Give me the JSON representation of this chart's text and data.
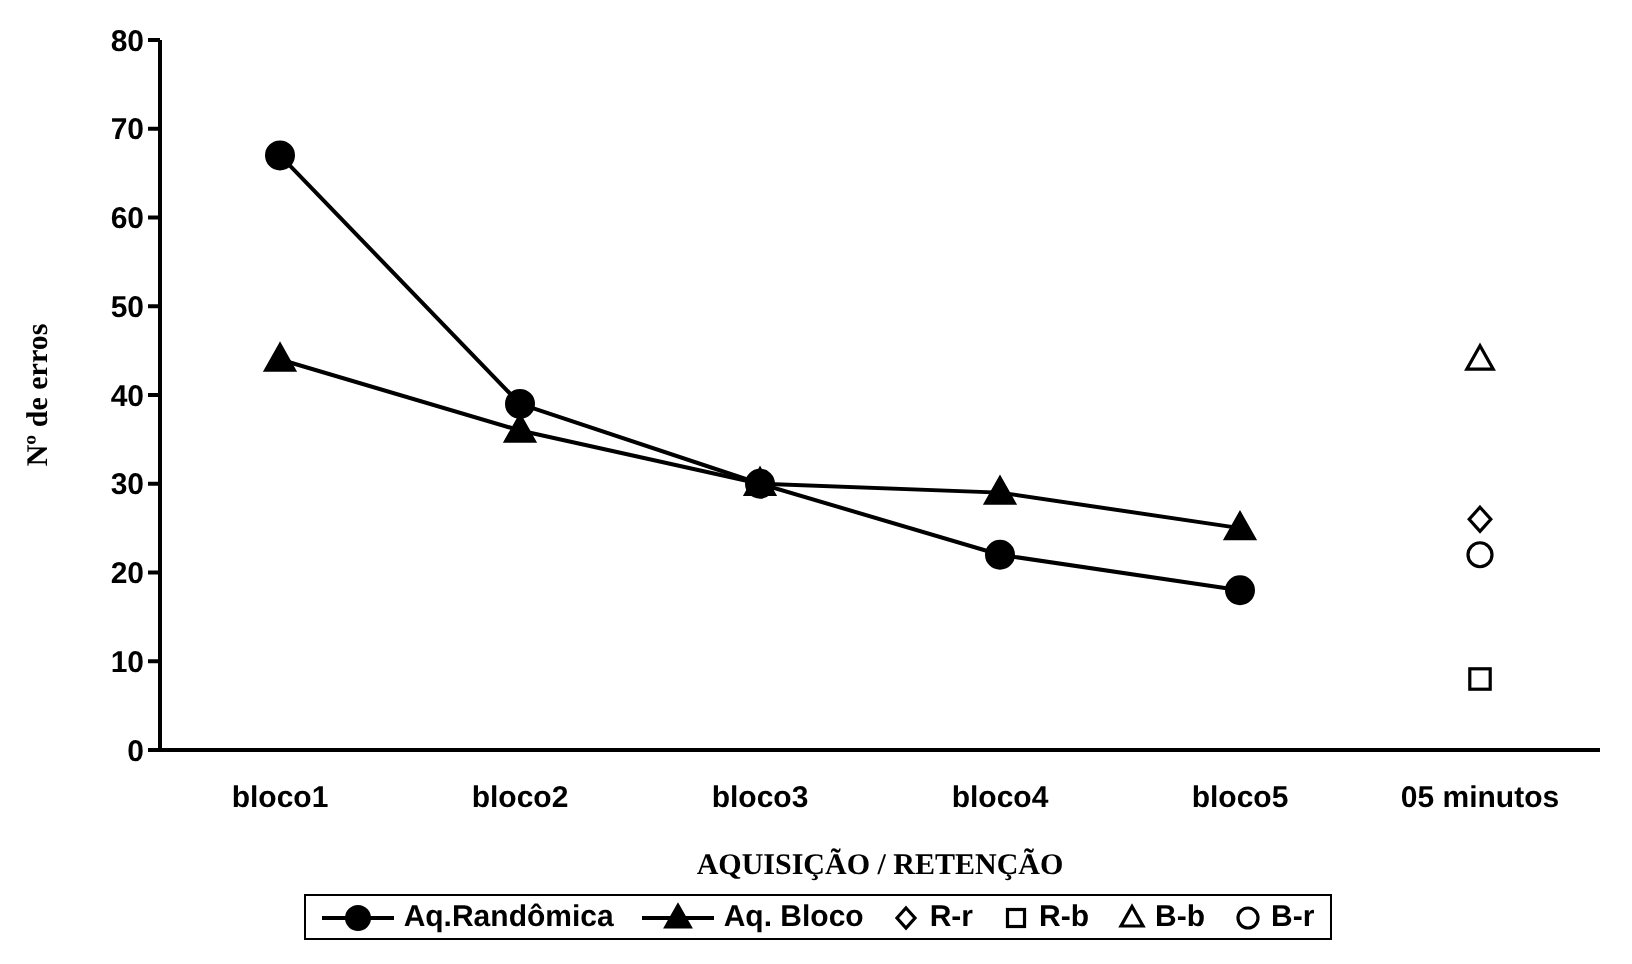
{
  "chart_data": {
    "type": "line",
    "xlabel": "AQUISIÇÃO / RETENÇÃO",
    "ylabel": "Nº de erros",
    "categories": [
      "bloco1",
      "bloco2",
      "bloco3",
      "bloco4",
      "bloco5",
      "05 minutos"
    ],
    "series": [
      {
        "name": "Aq.Randômica",
        "color": "#000000",
        "marker": "circle",
        "values": [
          67,
          39,
          30,
          22,
          18,
          null
        ]
      },
      {
        "name": "Aq. Bloco",
        "color": "#000000",
        "marker": "triangle",
        "values": [
          44,
          36,
          30,
          29,
          25,
          null
        ]
      },
      {
        "name": "R-r",
        "type": "scatter",
        "color": "#000000",
        "marker": "diamond",
        "values": [
          null,
          null,
          null,
          null,
          null,
          26
        ]
      },
      {
        "name": "R-b",
        "type": "scatter",
        "color": "#000000",
        "marker": "square",
        "values": [
          null,
          null,
          null,
          null,
          null,
          8
        ]
      },
      {
        "name": "B-b",
        "type": "scatter",
        "color": "#000000",
        "marker": "triangle",
        "values": [
          null,
          null,
          null,
          null,
          null,
          44
        ]
      },
      {
        "name": "B-r",
        "type": "scatter",
        "color": "#000000",
        "marker": "circle",
        "values": [
          null,
          null,
          null,
          null,
          null,
          22
        ]
      }
    ],
    "ylim": [
      0,
      80
    ],
    "yticks": [
      0,
      10,
      20,
      30,
      40,
      50,
      60,
      70,
      80
    ],
    "grid": false,
    "legend": "bottom",
    "line_style": "solid"
  }
}
